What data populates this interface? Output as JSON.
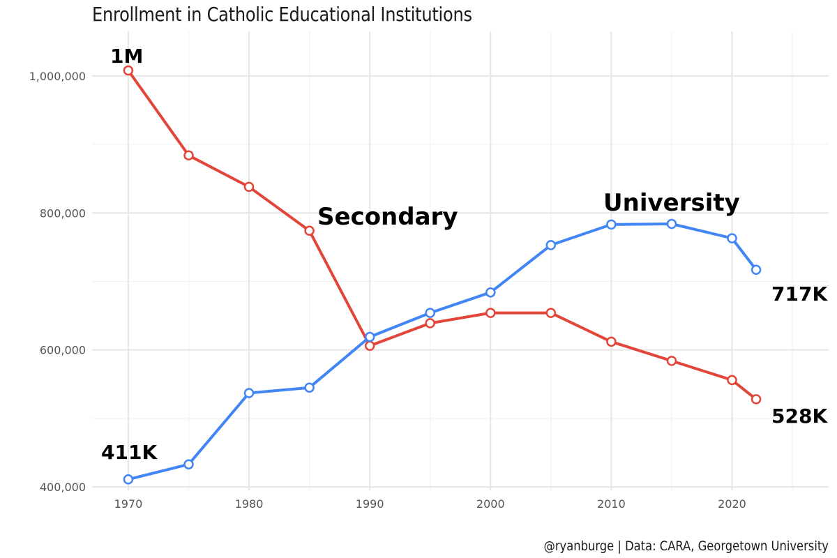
{
  "chart_data": {
    "type": "line",
    "title": "Enrollment in Catholic Educational Institutions",
    "caption": "@ryanburge | Data: CARA, Georgetown University",
    "xlabel": "",
    "ylabel": "",
    "x": [
      1970,
      1975,
      1980,
      1985,
      1990,
      1995,
      2000,
      2005,
      2010,
      2015,
      2020,
      2022
    ],
    "xlim": [
      1967,
      2028
    ],
    "ylim": [
      395000,
      1065000
    ],
    "x_ticks": [
      1970,
      1980,
      1990,
      2000,
      2010,
      2020
    ],
    "x_tick_labels": [
      "1970",
      "1980",
      "1990",
      "2000",
      "2010",
      "2020"
    ],
    "y_ticks": [
      400000,
      600000,
      800000,
      1000000
    ],
    "y_tick_labels": [
      "400,000",
      "600,000",
      "800,000",
      "1,000,000"
    ],
    "grid": true,
    "legend": "none",
    "series": [
      {
        "name": "Secondary",
        "color": "#e2453a",
        "values": [
          1008000,
          884000,
          838000,
          774000,
          606000,
          639000,
          654000,
          654000,
          612000,
          584000,
          556000,
          528000
        ]
      },
      {
        "name": "University",
        "color": "#4285f4",
        "values": [
          411000,
          433000,
          537000,
          545000,
          619000,
          654000,
          684000,
          753000,
          783000,
          784000,
          763000,
          717000
        ]
      }
    ],
    "annotations": [
      {
        "text": "1M",
        "x": 1970,
        "y": 1008000,
        "series": "Secondary",
        "kind": "value"
      },
      {
        "text": "411K",
        "x": 1970,
        "y": 411000,
        "series": "University",
        "kind": "value"
      },
      {
        "text": "717K",
        "x": 2022,
        "y": 717000,
        "series": "University",
        "kind": "value"
      },
      {
        "text": "528K",
        "x": 2022,
        "y": 528000,
        "series": "Secondary",
        "kind": "value"
      }
    ]
  }
}
